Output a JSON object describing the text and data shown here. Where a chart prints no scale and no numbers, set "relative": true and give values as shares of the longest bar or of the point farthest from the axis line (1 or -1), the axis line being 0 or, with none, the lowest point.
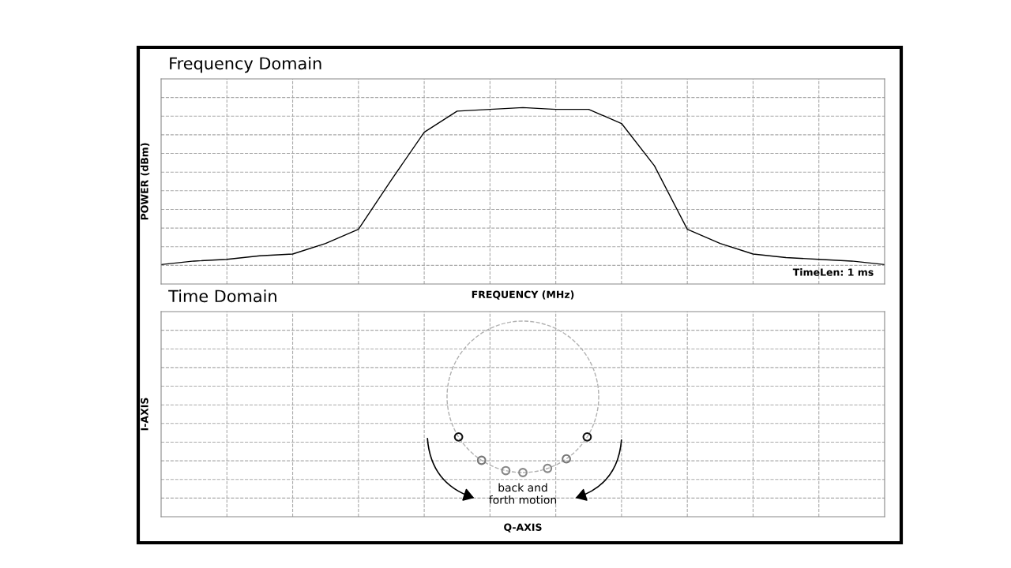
{
  "chart_data": [
    {
      "type": "line",
      "title": "Frequency Domain",
      "xlabel": "FREQUENCY (MHz)",
      "ylabel": "POWER (dBm)",
      "relative": true,
      "grid": true,
      "color": "#000000",
      "annotations": [
        "TimeLen: 1 ms"
      ],
      "categories": [
        null,
        null,
        null,
        null,
        null,
        null,
        null,
        null,
        null,
        null,
        null,
        null,
        null,
        null,
        null,
        null,
        null,
        null,
        null,
        null,
        null,
        null,
        null
      ],
      "values": [
        0.11,
        0.13,
        0.14,
        0.16,
        0.17,
        0.23,
        0.31,
        0.59,
        0.86,
        0.98,
        0.99,
        1.0,
        0.99,
        0.99,
        0.91,
        0.67,
        0.31,
        0.23,
        0.17,
        0.15,
        0.14,
        0.13,
        0.11
      ]
    },
    {
      "type": "other",
      "title": "Time Domain",
      "xlabel": "Q-AXIS",
      "ylabel": "I-AXIS",
      "annotations": [
        "back and\nforth motion"
      ]
    }
  ]
}
